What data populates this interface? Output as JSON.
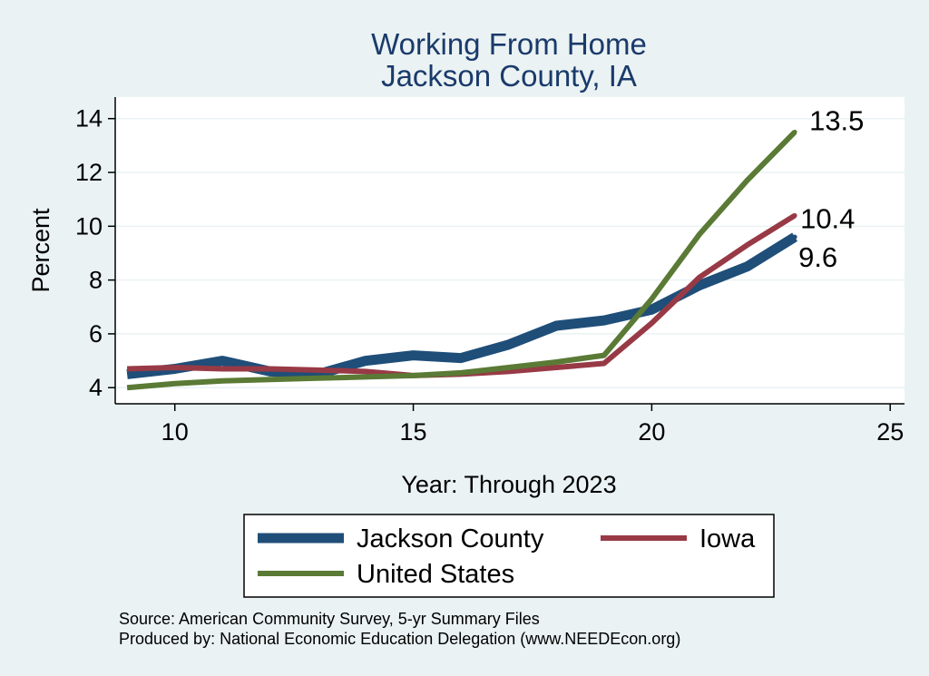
{
  "chart_data": {
    "type": "line",
    "title": [
      "Working From Home",
      "Jackson County, IA"
    ],
    "xlabel": "Year: Through 2023",
    "ylabel": "Percent",
    "xlim": [
      8.75,
      25.3
    ],
    "ylim": [
      3.4,
      14.8
    ],
    "xticks": [
      10,
      15,
      20,
      25
    ],
    "yticks": [
      4,
      6,
      8,
      10,
      12,
      14
    ],
    "grid": true,
    "legend_position": "bottom",
    "x": [
      9,
      10,
      11,
      12,
      13,
      14,
      15,
      16,
      17,
      18,
      19,
      20,
      21,
      22,
      23
    ],
    "series": [
      {
        "name": "Jackson County",
        "color": "#1f4e79",
        "values": [
          4.5,
          4.7,
          5.0,
          4.6,
          4.5,
          5.0,
          5.2,
          5.1,
          5.6,
          6.3,
          6.5,
          6.9,
          7.8,
          8.5,
          9.6
        ],
        "end_label": "9.6"
      },
      {
        "name": "Iowa",
        "color": "#983a46",
        "values": [
          4.7,
          4.75,
          4.7,
          4.7,
          4.65,
          4.6,
          4.45,
          4.5,
          4.6,
          4.75,
          4.9,
          6.4,
          8.1,
          9.3,
          10.4
        ],
        "end_label": "10.4"
      },
      {
        "name": "United States",
        "color": "#5a7a35",
        "values": [
          4.0,
          4.15,
          4.25,
          4.3,
          4.35,
          4.4,
          4.45,
          4.55,
          4.75,
          4.95,
          5.2,
          7.3,
          9.7,
          11.7,
          13.5
        ],
        "end_label": "13.5"
      }
    ]
  },
  "notes": [
    "Source: American Community Survey, 5-yr Summary Files",
    "Produced by: National Economic Education Delegation (www.NEEDEcon.org)"
  ]
}
